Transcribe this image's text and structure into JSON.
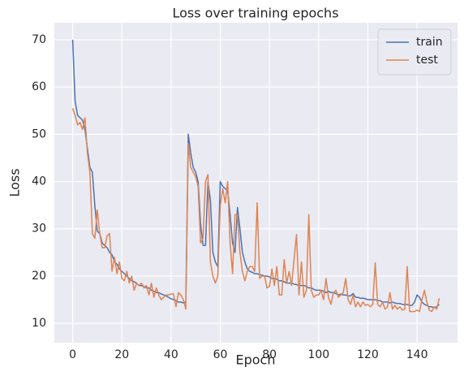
{
  "chart_data": {
    "type": "line",
    "title": "Loss over training epochs",
    "x_label": "Epoch",
    "y_label": "Loss",
    "x": [
      0,
      1,
      2,
      3,
      4,
      5,
      6,
      7,
      8,
      9,
      10,
      11,
      12,
      13,
      14,
      15,
      16,
      17,
      18,
      19,
      20,
      21,
      22,
      23,
      24,
      25,
      26,
      27,
      28,
      29,
      30,
      31,
      32,
      33,
      34,
      35,
      36,
      37,
      38,
      39,
      40,
      41,
      42,
      43,
      44,
      45,
      46,
      47,
      48,
      49,
      50,
      51,
      52,
      53,
      54,
      55,
      56,
      57,
      58,
      59,
      60,
      61,
      62,
      63,
      64,
      65,
      66,
      67,
      68,
      69,
      70,
      71,
      72,
      73,
      74,
      75,
      76,
      77,
      78,
      79,
      80,
      81,
      82,
      83,
      84,
      85,
      86,
      87,
      88,
      89,
      90,
      91,
      92,
      93,
      94,
      95,
      96,
      97,
      98,
      99,
      100,
      101,
      102,
      103,
      104,
      105,
      106,
      107,
      108,
      109,
      110,
      111,
      112,
      113,
      114,
      115,
      116,
      117,
      118,
      119,
      120,
      121,
      122,
      123,
      124,
      125,
      126,
      127,
      128,
      129,
      130,
      131,
      132,
      133,
      134,
      135,
      136,
      137,
      138,
      139,
      140,
      141,
      142,
      143,
      144,
      145,
      146,
      147,
      148,
      149
    ],
    "series": [
      {
        "name": "train",
        "color": "#4c72b0",
        "values": [
          70,
          57,
          54,
          53.5,
          53,
          51,
          47,
          43,
          42,
          35,
          29.5,
          29,
          27,
          26.5,
          26,
          25,
          24.5,
          23,
          22.5,
          21.5,
          21,
          20.5,
          20,
          19.5,
          19,
          18.8,
          18.5,
          18,
          18,
          17.8,
          17.5,
          17.5,
          17,
          16.8,
          16.5,
          16.5,
          16.2,
          16,
          15.8,
          15.5,
          15.2,
          15,
          14.8,
          14.5,
          14.5,
          14.3,
          14.5,
          50,
          46,
          43,
          42,
          40,
          31,
          26.5,
          26.5,
          40,
          36,
          25,
          23,
          22,
          40,
          39,
          38.5,
          38,
          33,
          27,
          25,
          34.5,
          30,
          25,
          23,
          21.5,
          21,
          20.8,
          20.5,
          20.5,
          20.3,
          20.2,
          20,
          20,
          19.8,
          19.5,
          19.5,
          19.3,
          19,
          19,
          18.8,
          18.5,
          18.5,
          18.5,
          18.3,
          18.2,
          18,
          18,
          18,
          17.8,
          17.5,
          17.5,
          17.2,
          17,
          17,
          17,
          16.8,
          16.5,
          16.8,
          16.5,
          16.5,
          16.3,
          16,
          16.2,
          16,
          16,
          15.8,
          15.8,
          16.3,
          15.5,
          15.5,
          15.3,
          15.3,
          15.2,
          15,
          15,
          15,
          15,
          14.8,
          14.8,
          14.5,
          14.5,
          14.5,
          14.3,
          14.5,
          14.3,
          14.2,
          14.2,
          14,
          14,
          14,
          13.8,
          13.8,
          14.5,
          16,
          15.5,
          14.5,
          14,
          13.8,
          13.5,
          13.5,
          13.3,
          13.5,
          14
        ]
      },
      {
        "name": "test",
        "color": "#dd8452",
        "values": [
          55.5,
          54,
          52,
          52.5,
          51,
          53.5,
          46,
          42,
          29,
          28,
          34,
          29,
          26,
          26,
          28.5,
          29,
          21,
          24,
          20.5,
          23,
          19.5,
          19,
          21,
          18.5,
          20,
          17,
          18.5,
          18,
          18.5,
          17.5,
          18,
          16,
          18.5,
          15.5,
          17.5,
          16,
          15,
          15.5,
          16,
          16,
          16.2,
          16.2,
          13.5,
          16.5,
          16,
          15,
          13,
          48,
          43,
          42,
          41,
          39,
          27,
          28,
          40,
          41.5,
          23,
          20,
          18.5,
          20,
          35,
          38.5,
          35.5,
          40,
          27,
          20.5,
          33,
          33,
          25,
          21,
          19,
          21,
          22,
          22,
          21,
          35.5,
          19.5,
          20,
          20,
          17.5,
          17.8,
          21.5,
          18,
          22,
          16,
          16,
          23.5,
          18.5,
          21,
          18,
          23.5,
          28.8,
          16,
          23,
          15.5,
          17,
          33,
          17,
          15.5,
          16,
          16,
          17,
          15,
          19.5,
          15.5,
          14,
          16.5,
          17,
          15.5,
          16,
          16.5,
          19.5,
          15,
          14,
          16,
          13.5,
          14.5,
          13.5,
          14.5,
          13.8,
          14,
          13.5,
          14,
          22.8,
          14,
          13.5,
          14.5,
          13,
          13.5,
          16.5,
          13,
          13.8,
          13,
          13.5,
          12.8,
          13,
          22,
          12.5,
          12.5,
          12.5,
          12.8,
          12.5,
          15,
          17,
          14.5,
          12.8,
          12.5,
          13.5,
          13,
          15.3
        ]
      }
    ],
    "xlim": [
      -7.45,
      156.45
    ],
    "ylim": [
      5.9,
      73.6
    ],
    "xticks": [
      0,
      20,
      40,
      60,
      80,
      100,
      120,
      140
    ],
    "yticks": [
      10,
      20,
      30,
      40,
      50,
      60,
      70
    ],
    "grid": true,
    "legend": "upper right"
  }
}
